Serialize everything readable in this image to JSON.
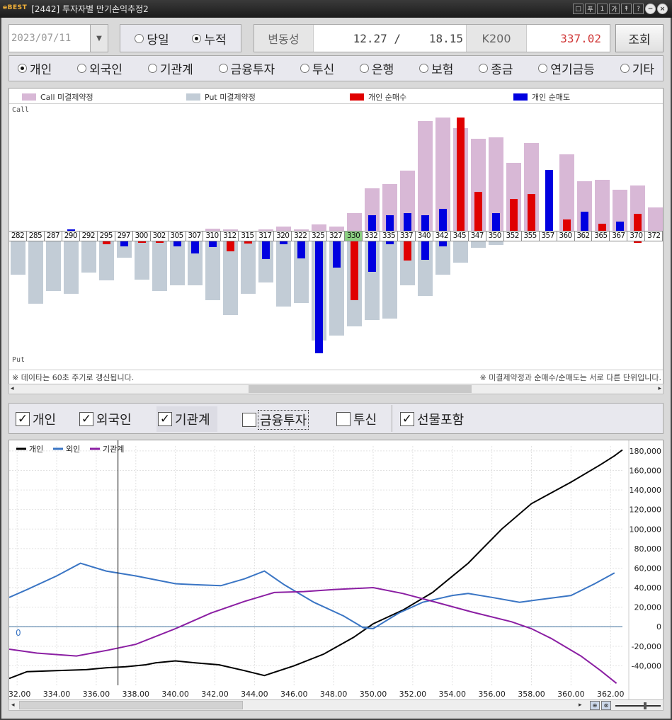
{
  "window": {
    "brand": "eBEST",
    "title": "[2442] 투자자별 만기손익추정2",
    "buttons": [
      "□",
      "푸",
      "1",
      "가",
      "↟",
      "?"
    ]
  },
  "controls": {
    "date": "2023/07/11",
    "mode_options": [
      "당일",
      "누적"
    ],
    "mode_selected": "누적",
    "volatility_label": "변동성",
    "volatility_1": "12.27 /",
    "volatility_2": "18.15",
    "index_label": "K200",
    "index_value": "337.02",
    "query_label": "조회"
  },
  "investors": {
    "options": [
      "개인",
      "외국인",
      "기관계",
      "금융투자",
      "투신",
      "은행",
      "보험",
      "종금",
      "연기금등",
      "기타"
    ],
    "selected": "개인"
  },
  "chart_data": [
    {
      "type": "bar",
      "legend": [
        "Call 미결제약정",
        "Put 미결제약정",
        "개인 순매수",
        "개인 순매도"
      ],
      "colors": {
        "call": "#d8b8d6",
        "put": "#c2ccd6",
        "buy": "#e00000",
        "sell": "#0000e0"
      },
      "upper_label": "Call",
      "lower_label": "Put",
      "categories": [
        "282",
        "285",
        "287",
        "290",
        "292",
        "295",
        "297",
        "300",
        "302",
        "305",
        "307",
        "310",
        "312",
        "315",
        "317",
        "320",
        "322",
        "325",
        "327",
        "330",
        "332",
        "335",
        "337",
        "340",
        "342",
        "345",
        "347",
        "350",
        "352",
        "355",
        "357",
        "360",
        "362",
        "365",
        "367",
        "370",
        "372"
      ],
      "highlight": "330",
      "call_oi": [
        0,
        0,
        0,
        0,
        0,
        0,
        0,
        0,
        0,
        0,
        0,
        3,
        2,
        0,
        2,
        6,
        2,
        9,
        6,
        25,
        60,
        66,
        85,
        155,
        160,
        145,
        130,
        132,
        96,
        124,
        0,
        108,
        70,
        72,
        58,
        64,
        33
      ],
      "call_trade": [
        0,
        0,
        0,
        -2,
        0,
        0,
        0,
        0,
        0,
        0,
        0,
        0,
        0,
        0,
        0,
        0,
        0,
        0,
        0,
        0,
        -22,
        -22,
        -25,
        -22,
        -31,
        160,
        55,
        -25,
        45,
        52,
        -86,
        16,
        -27,
        10,
        -13,
        24,
        0
      ],
      "put_oi": [
        47,
        88,
        70,
        74,
        44,
        55,
        23,
        54,
        70,
        62,
        62,
        83,
        104,
        74,
        58,
        92,
        87,
        140,
        133,
        120,
        111,
        109,
        62,
        77,
        47,
        30,
        9,
        5,
        0,
        0,
        0,
        0,
        0,
        0,
        0,
        0,
        0
      ],
      "put_trade": [
        0,
        0,
        0,
        0,
        0,
        4,
        -7,
        2,
        2,
        -7,
        -17,
        -8,
        14,
        3,
        -25,
        -4,
        -24,
        -158,
        -37,
        83,
        -43,
        -4,
        27,
        -26,
        -7,
        0,
        0,
        0,
        0,
        0,
        0,
        0,
        0,
        0,
        0,
        2,
        0
      ],
      "notes": [
        "※ 데이타는 60초 주기로 갱신됩니다.",
        "※ 미결제약정과 순매수/순매도는 서로 다른 단위입니다."
      ]
    },
    {
      "type": "line",
      "series": [
        {
          "name": "개인",
          "color": "#000000",
          "points": [
            [
              331.6,
              -53000
            ],
            [
              332.5,
              -46000
            ],
            [
              334,
              -45000
            ],
            [
              335.5,
              -44000
            ],
            [
              336.5,
              -42000
            ],
            [
              337.5,
              -41000
            ],
            [
              338.5,
              -39000
            ],
            [
              339,
              -37000
            ],
            [
              340,
              -35000
            ],
            [
              341,
              -37000
            ],
            [
              342.2,
              -39000
            ],
            [
              343.5,
              -45000
            ],
            [
              344.5,
              -50000
            ],
            [
              346,
              -40000
            ],
            [
              347.5,
              -28000
            ],
            [
              349,
              -11000
            ],
            [
              350,
              3000
            ],
            [
              351.5,
              17000
            ],
            [
              353,
              35000
            ],
            [
              354.8,
              65000
            ],
            [
              356.5,
              100000
            ],
            [
              358,
              126000
            ],
            [
              360,
              148000
            ],
            [
              361.5,
              166000
            ],
            [
              362.2,
              175000
            ],
            [
              362.6,
              181000
            ]
          ]
        },
        {
          "name": "외인",
          "color": "#3a75c4",
          "points": [
            [
              331.6,
              30000
            ],
            [
              332.5,
              38000
            ],
            [
              334,
              52000
            ],
            [
              335.2,
              65000
            ],
            [
              336.5,
              57000
            ],
            [
              338,
              52000
            ],
            [
              340,
              44000
            ],
            [
              341,
              43000
            ],
            [
              342.3,
              42000
            ],
            [
              343.5,
              49000
            ],
            [
              344.5,
              57000
            ],
            [
              345.5,
              43000
            ],
            [
              347,
              25000
            ],
            [
              348.5,
              11000
            ],
            [
              349.5,
              -1000
            ],
            [
              350,
              -2000
            ],
            [
              351.3,
              14000
            ],
            [
              352.5,
              25000
            ],
            [
              354,
              32000
            ],
            [
              354.8,
              34000
            ],
            [
              356,
              30000
            ],
            [
              357.4,
              25000
            ],
            [
              358.5,
              28000
            ],
            [
              360,
              32000
            ],
            [
              361.2,
              44000
            ],
            [
              362.2,
              55000
            ]
          ]
        },
        {
          "name": "기관계",
          "color": "#8b1fa3",
          "points": [
            [
              331.6,
              -23000
            ],
            [
              333,
              -27000
            ],
            [
              335,
              -30000
            ],
            [
              336.6,
              -24000
            ],
            [
              338,
              -18000
            ],
            [
              340,
              -2000
            ],
            [
              341.8,
              14000
            ],
            [
              343.5,
              26000
            ],
            [
              345,
              35000
            ],
            [
              346.5,
              36000
            ],
            [
              348,
              38000
            ],
            [
              350,
              40000
            ],
            [
              351.5,
              34000
            ],
            [
              353,
              26000
            ],
            [
              355,
              15000
            ],
            [
              357,
              5000
            ],
            [
              358,
              -2000
            ],
            [
              359,
              -12000
            ],
            [
              360.5,
              -30000
            ],
            [
              361.5,
              -45000
            ],
            [
              362.3,
              -58000
            ]
          ]
        }
      ],
      "zero_label": "0",
      "xlim": [
        331.6,
        362.6
      ],
      "ylim": [
        -60000,
        185000
      ],
      "xticks": [
        "332.00",
        "334.00",
        "336.00",
        "338.00",
        "340.00",
        "342.00",
        "344.00",
        "346.00",
        "348.00",
        "350.00",
        "352.00",
        "354.00",
        "356.00",
        "358.00",
        "360.00",
        "362.00"
      ],
      "yticks": [
        "180,000",
        "160,000",
        "140,000",
        "120,000",
        "100,000",
        "80,000",
        "60,000",
        "40,000",
        "20,000",
        "0",
        "-20,000",
        "-40,000"
      ],
      "cursor_x": 337.1
    }
  ],
  "filters": {
    "items": [
      {
        "label": "개인",
        "checked": true
      },
      {
        "label": "외국인",
        "checked": true
      },
      {
        "label": "기관계",
        "checked": true
      },
      {
        "label": "금융투자",
        "checked": false
      },
      {
        "label": "투신",
        "checked": false
      },
      {
        "label": "선물포함",
        "checked": true
      }
    ]
  },
  "scroll": {
    "arrow_left": "◂",
    "arrow_right": "▸"
  }
}
